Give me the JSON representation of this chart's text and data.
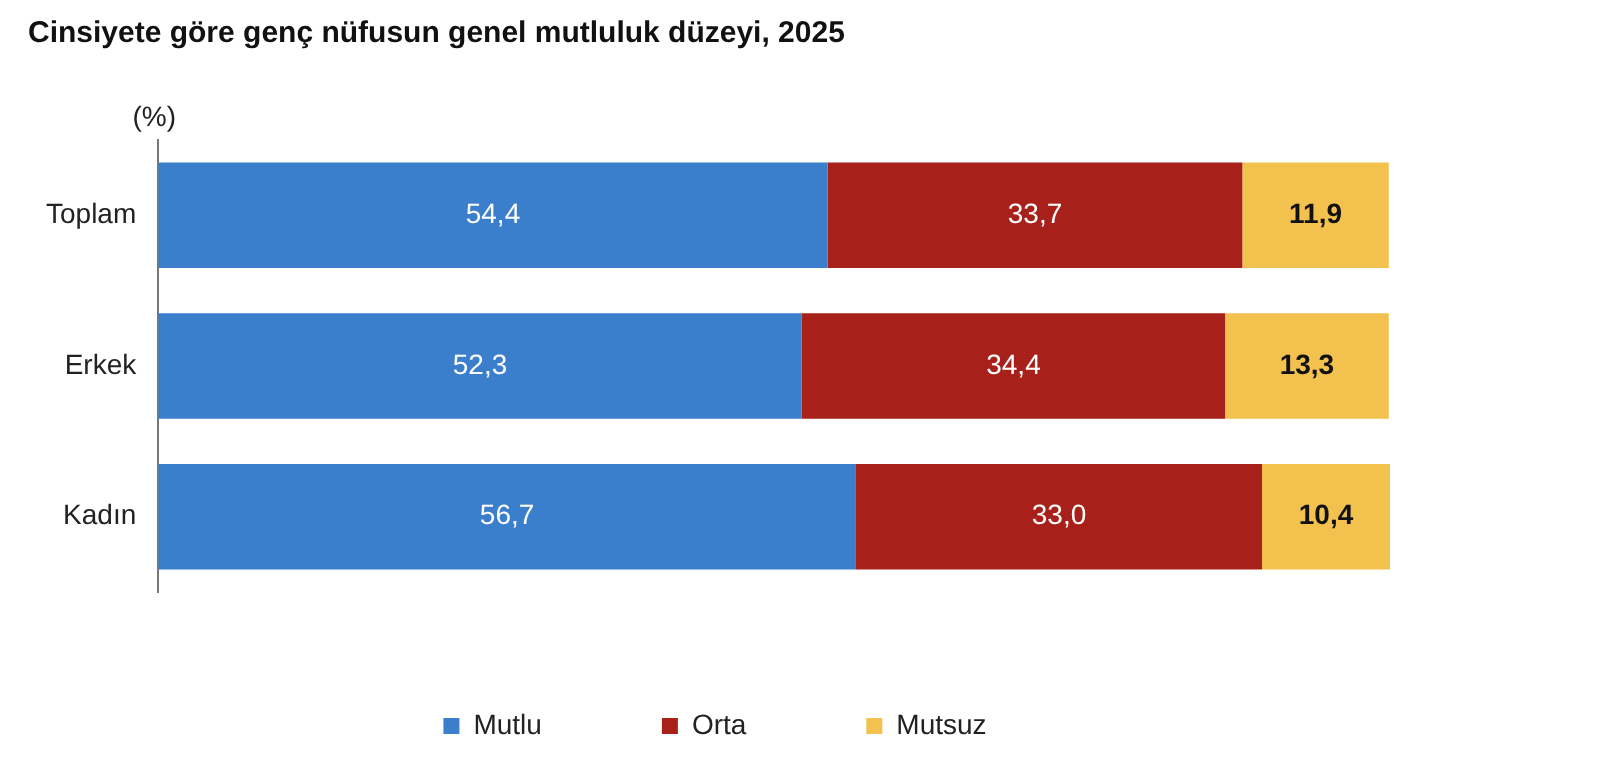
{
  "chart_data": {
    "type": "bar",
    "orientation": "horizontal",
    "stacked": true,
    "title": "Cinsiyete göre genç nüfusun genel mutluluk düzeyi, 2025",
    "ylabel": "(%)",
    "categories": [
      "Toplam",
      "Erkek",
      "Kadın"
    ],
    "series": [
      {
        "name": "Mutlu",
        "color": "#3b7fcc",
        "values": [
          54.4,
          52.3,
          56.7
        ],
        "value_labels": [
          "54,4",
          "52,3",
          "56,7"
        ]
      },
      {
        "name": "Orta",
        "color": "#a8201a",
        "values": [
          33.7,
          34.4,
          33.0
        ],
        "value_labels": [
          "33,7",
          "34,4",
          "33,0"
        ]
      },
      {
        "name": "Mutsuz",
        "color": "#f2c14e",
        "values": [
          11.9,
          13.3,
          10.4
        ],
        "value_labels": [
          "11,9",
          "13,3",
          "10,4"
        ]
      }
    ],
    "legend": "bottom",
    "tick_labels": "y"
  }
}
